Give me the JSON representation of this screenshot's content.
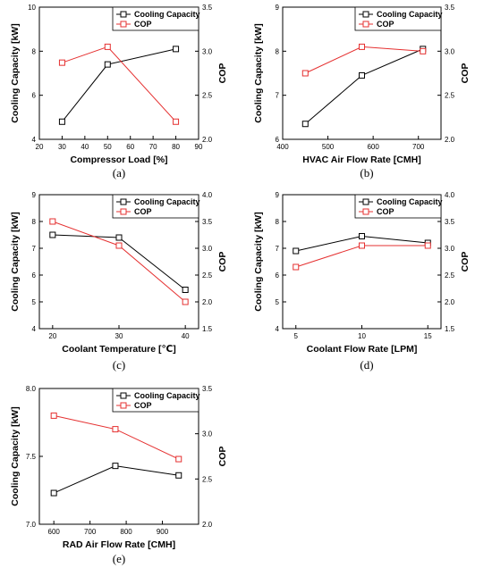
{
  "colors": {
    "cooling": "#000000",
    "cop": "#e53030"
  },
  "chart_data": [
    {
      "type": "line",
      "panel_label": "(a)",
      "x": [
        30,
        50,
        80
      ],
      "xlabel": "Compressor Load [%]",
      "ylabel_left": "Cooling Capacity [kW]",
      "ylabel_right": "COP",
      "xlim": [
        20,
        90
      ],
      "xticks": [
        20,
        30,
        40,
        50,
        60,
        70,
        80,
        90
      ],
      "ylim_left": [
        4,
        10
      ],
      "yticks_left": [
        4,
        6,
        8,
        10
      ],
      "ylim_right": [
        2.0,
        3.5
      ],
      "yticks_right": [
        2.0,
        2.5,
        3.0,
        3.5
      ],
      "legend_position": "top-right",
      "series": [
        {
          "name": "Cooling Capacity",
          "axis": "left",
          "marker": "square",
          "values": [
            4.8,
            7.4,
            8.1
          ]
        },
        {
          "name": "COP",
          "axis": "right",
          "marker": "square",
          "values": [
            2.87,
            3.05,
            2.2
          ]
        }
      ]
    },
    {
      "type": "line",
      "panel_label": "(b)",
      "x": [
        450,
        575,
        710
      ],
      "xlabel": "HVAC Air Flow Rate [CMH]",
      "ylabel_left": "Cooling Capacity [kW]",
      "ylabel_right": "COP",
      "xlim": [
        400,
        750
      ],
      "xticks": [
        400,
        500,
        600,
        700
      ],
      "ylim_left": [
        6,
        9
      ],
      "yticks_left": [
        6,
        7,
        8,
        9
      ],
      "ylim_right": [
        2.0,
        3.5
      ],
      "yticks_right": [
        2.0,
        2.5,
        3.0,
        3.5
      ],
      "legend_position": "top-right",
      "series": [
        {
          "name": "Cooling Capacity",
          "axis": "left",
          "marker": "square",
          "values": [
            6.35,
            7.45,
            8.05
          ]
        },
        {
          "name": "COP",
          "axis": "right",
          "marker": "square",
          "values": [
            2.75,
            3.05,
            3.0
          ]
        }
      ]
    },
    {
      "type": "line",
      "panel_label": "(c)",
      "x": [
        20,
        30,
        40
      ],
      "xlabel": "Coolant Temperature [℃]",
      "ylabel_left": "Cooling Capacity [kW]",
      "ylabel_right": "COP",
      "xlim": [
        18,
        42
      ],
      "xticks": [
        20,
        30,
        40
      ],
      "ylim_left": [
        4,
        9
      ],
      "yticks_left": [
        4,
        5,
        6,
        7,
        8,
        9
      ],
      "ylim_right": [
        1.5,
        4.0
      ],
      "yticks_right": [
        1.5,
        2.0,
        2.5,
        3.0,
        3.5,
        4.0
      ],
      "legend_position": "top-right",
      "series": [
        {
          "name": "Cooling Capacity",
          "axis": "left",
          "marker": "square",
          "values": [
            7.5,
            7.4,
            5.45
          ]
        },
        {
          "name": "COP",
          "axis": "right",
          "marker": "square",
          "values": [
            3.5,
            3.05,
            2.0
          ]
        }
      ]
    },
    {
      "type": "line",
      "panel_label": "(d)",
      "x": [
        5,
        10,
        15
      ],
      "xlabel": "Coolant Flow Rate [LPM]",
      "ylabel_left": "Cooling Capacity [kW]",
      "ylabel_right": "COP",
      "xlim": [
        4,
        16
      ],
      "xticks": [
        5,
        10,
        15
      ],
      "ylim_left": [
        4,
        9
      ],
      "yticks_left": [
        4,
        5,
        6,
        7,
        8,
        9
      ],
      "ylim_right": [
        1.5,
        4.0
      ],
      "yticks_right": [
        1.5,
        2.0,
        2.5,
        3.0,
        3.5,
        4.0
      ],
      "legend_position": "top-right",
      "series": [
        {
          "name": "Cooling Capacity",
          "axis": "left",
          "marker": "square",
          "values": [
            6.9,
            7.45,
            7.2
          ]
        },
        {
          "name": "COP",
          "axis": "right",
          "marker": "square",
          "values": [
            2.65,
            3.05,
            3.05
          ]
        }
      ]
    },
    {
      "type": "line",
      "panel_label": "(e)",
      "x": [
        600,
        770,
        945
      ],
      "xlabel": "RAD Air Flow Rate [CMH]",
      "ylabel_left": "Cooling Capacity [kW]",
      "ylabel_right": "COP",
      "xlim": [
        560,
        1000
      ],
      "xticks": [
        600,
        700,
        800,
        900
      ],
      "ylim_left": [
        7.0,
        8.0
      ],
      "yticks_left": [
        7.0,
        7.5,
        8.0
      ],
      "ylim_right": [
        2.0,
        3.5
      ],
      "yticks_right": [
        2.0,
        2.5,
        3.0,
        3.5
      ],
      "legend_position": "top-right",
      "series": [
        {
          "name": "Cooling Capacity",
          "axis": "left",
          "marker": "square",
          "values": [
            7.23,
            7.43,
            7.36
          ]
        },
        {
          "name": "COP",
          "axis": "right",
          "marker": "square",
          "values": [
            3.2,
            3.05,
            2.72
          ]
        }
      ]
    }
  ]
}
